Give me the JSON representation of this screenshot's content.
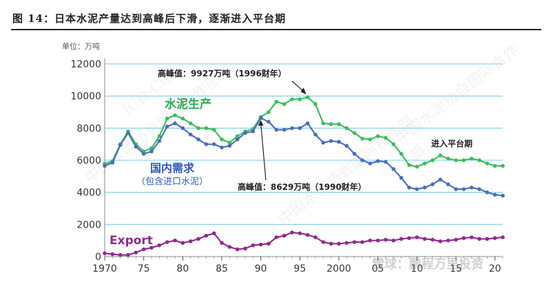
{
  "header": {
    "title": "图 14：日本水泥产量达到高峰后下滑，逐渐进入平台期"
  },
  "watermark": {
    "org": "中国水泥协会国际合作部",
    "code": "ICD-CCA",
    "brand": "雪球：鹏程万里投资"
  },
  "colors": {
    "production": "#3dbd5e",
    "demand": "#4a6fb8",
    "export": "#8e2a8e",
    "grid": "#7ec8e3",
    "axis": "#888888",
    "label_blue": "#2d5bb5"
  },
  "chart_data": {
    "type": "line",
    "unit_label": "单位：万吨",
    "x": [
      1970,
      1971,
      1972,
      1973,
      1974,
      1975,
      1976,
      1977,
      1978,
      1979,
      1980,
      1981,
      1982,
      1983,
      1984,
      1985,
      1986,
      1987,
      1988,
      1989,
      1990,
      1991,
      1992,
      1993,
      1994,
      1995,
      1996,
      1997,
      1998,
      1999,
      2000,
      2001,
      2002,
      2003,
      2004,
      2005,
      2006,
      2007,
      2008,
      2009,
      2010,
      2011,
      2012,
      2013,
      2014,
      2015,
      2016,
      2017,
      2018,
      2019,
      2020,
      2021
    ],
    "x_ticks": [
      "1970",
      "75",
      "80",
      "85",
      "90",
      "95",
      "2000",
      "05",
      "10",
      "15",
      "20"
    ],
    "x_tick_values": [
      1970,
      1975,
      1980,
      1985,
      1990,
      1995,
      2000,
      2005,
      2010,
      2015,
      2020
    ],
    "y_ticks": [
      "0",
      "2000",
      "4000",
      "6000",
      "8000",
      "10000",
      "12000"
    ],
    "ylim": [
      0,
      12000
    ],
    "series": [
      {
        "name": "水泥生产",
        "key": "production",
        "values": [
          5780,
          5950,
          7000,
          7800,
          7000,
          6550,
          6750,
          7500,
          8600,
          8800,
          8600,
          8300,
          8000,
          8000,
          7900,
          7300,
          7100,
          7500,
          7800,
          7950,
          8700,
          9000,
          9650,
          9500,
          9800,
          9800,
          9927,
          9500,
          8300,
          8250,
          8250,
          8000,
          7700,
          7350,
          7300,
          7500,
          7400,
          7000,
          6400,
          5700,
          5600,
          5800,
          6000,
          6300,
          6100,
          6000,
          6000,
          6100,
          6000,
          5800,
          5650,
          5650
        ]
      },
      {
        "name": "国内需求",
        "sub_name": "（包含进口水泥）",
        "key": "demand",
        "values": [
          5650,
          5850,
          6950,
          7700,
          6850,
          6400,
          6550,
          7200,
          8100,
          8300,
          8000,
          7600,
          7300,
          7000,
          7000,
          6800,
          6900,
          7300,
          7700,
          7800,
          8629,
          8400,
          7900,
          7900,
          8000,
          8000,
          8300,
          7600,
          7100,
          7200,
          7150,
          6900,
          6400,
          6000,
          5800,
          5950,
          5900,
          5450,
          4900,
          4300,
          4200,
          4300,
          4500,
          4800,
          4500,
          4200,
          4200,
          4300,
          4200,
          4000,
          3850,
          3800
        ]
      },
      {
        "name": "Export",
        "key": "export",
        "values": [
          200,
          150,
          100,
          100,
          250,
          450,
          550,
          700,
          900,
          1000,
          850,
          950,
          1100,
          1300,
          1450,
          850,
          600,
          450,
          500,
          700,
          750,
          800,
          1200,
          1300,
          1500,
          1450,
          1350,
          1200,
          900,
          800,
          800,
          850,
          900,
          900,
          1000,
          1000,
          1050,
          1000,
          1100,
          1150,
          1200,
          1100,
          1050,
          950,
          1000,
          1050,
          1150,
          1200,
          1100,
          1100,
          1150,
          1200
        ]
      }
    ],
    "annotations": [
      {
        "text": "高峰值：9927万吨（1996财年）",
        "x": 1996,
        "y": 9927
      },
      {
        "text": "高峰值：8629万吨（1990财年）",
        "x": 1990,
        "y": 8629
      },
      {
        "text": "进入平台期"
      }
    ]
  }
}
